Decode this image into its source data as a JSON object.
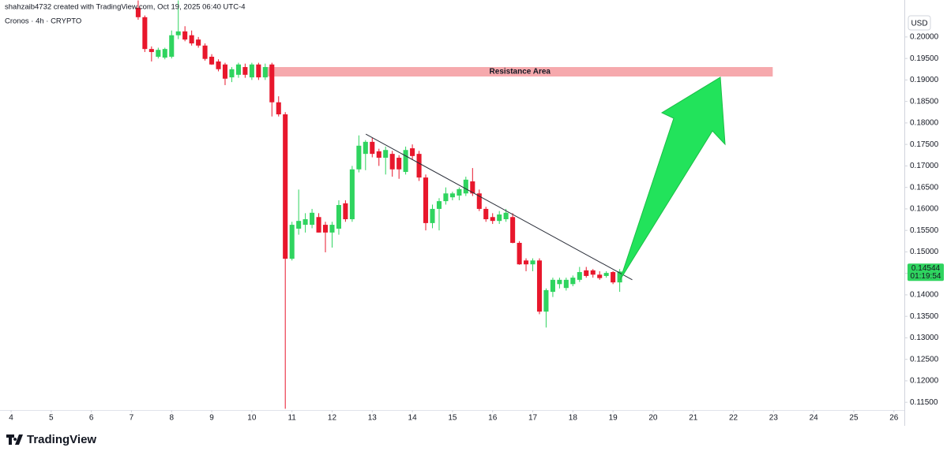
{
  "chart_data": {
    "type": "candlestick",
    "attribution": "shahzaib4732 created with TradingView.com, Oct 19, 2025 06:40 UTC-4",
    "title": "Cronos · 4h · CRYPTO",
    "currency": "USD",
    "logo_text": "TradingView",
    "up_color": "#2fd45f",
    "down_color": "#e8172c",
    "x": [
      7.167,
      7.333,
      7.5,
      7.667,
      7.833,
      8,
      8.167,
      8.333,
      8.5,
      8.667,
      8.833,
      9,
      9.167,
      9.333,
      9.5,
      9.667,
      9.833,
      10,
      10.167,
      10.333,
      10.5,
      10.667,
      10.833,
      11,
      11.167,
      11.333,
      11.5,
      11.667,
      11.833,
      12,
      12.167,
      12.333,
      12.5,
      12.667,
      12.833,
      13,
      13.167,
      13.333,
      13.5,
      13.667,
      13.833,
      14,
      14.167,
      14.333,
      14.5,
      14.667,
      14.833,
      15,
      15.167,
      15.333,
      15.5,
      15.667,
      15.833,
      16,
      16.167,
      16.333,
      16.5,
      16.667,
      16.833,
      17,
      17.167,
      17.333,
      17.5,
      17.667,
      17.833,
      18,
      18.167,
      18.333,
      18.5,
      18.667,
      18.833,
      19,
      19.167
    ],
    "open": [
      0.2068,
      0.2046,
      0.1972,
      0.1954,
      0.1952,
      0.1954,
      0.2004,
      0.2013,
      0.2004,
      0.1994,
      0.198,
      0.1954,
      0.1943,
      0.1936,
      0.1906,
      0.1912,
      0.193,
      0.1906,
      0.1936,
      0.1906,
      0.1936,
      0.1848,
      0.182,
      0.1484,
      0.1554,
      0.1563,
      0.1563,
      0.1581,
      0.1563,
      0.1545,
      0.1554,
      0.1613,
      0.1576,
      0.1692,
      0.1728,
      0.1756,
      0.1734,
      0.1719,
      0.1728,
      0.1719,
      0.1686,
      0.1741,
      0.1728,
      0.1673,
      0.1567,
      0.16,
      0.1618,
      0.1627,
      0.1631,
      0.1636,
      0.1664,
      0.1636,
      0.16,
      0.1581,
      0.1572,
      0.1576,
      0.1581,
      0.1521,
      0.148,
      0.1471,
      0.148,
      0.1361,
      0.1407,
      0.1425,
      0.1416,
      0.1425,
      0.1435,
      0.1457,
      0.1457,
      0.1447,
      0.1444,
      0.1453,
      0.1429
    ],
    "high": [
      0.2085,
      0.205,
      0.1978,
      0.1975,
      0.1975,
      0.2015,
      0.2085,
      0.2025,
      0.2015,
      0.2,
      0.1985,
      0.196,
      0.1948,
      0.194,
      0.193,
      0.194,
      0.1938,
      0.194,
      0.194,
      0.1938,
      0.194,
      0.1862,
      0.1825,
      0.157,
      0.1645,
      0.159,
      0.16,
      0.159,
      0.157,
      0.157,
      0.162,
      0.162,
      0.17,
      0.1771,
      0.176,
      0.1765,
      0.174,
      0.1745,
      0.1735,
      0.1725,
      0.1745,
      0.175,
      0.1735,
      0.168,
      0.161,
      0.1625,
      0.165,
      0.164,
      0.165,
      0.1675,
      0.1695,
      0.1645,
      0.1605,
      0.159,
      0.1595,
      0.16,
      0.159,
      0.1525,
      0.1485,
      0.1485,
      0.1485,
      0.1415,
      0.144,
      0.144,
      0.144,
      0.1445,
      0.1465,
      0.1465,
      0.146,
      0.1455,
      0.1455,
      0.1455,
      0.146
    ],
    "low": [
      0.204,
      0.1965,
      0.1943,
      0.195,
      0.1948,
      0.195,
      0.1995,
      0.199,
      0.198,
      0.1975,
      0.1945,
      0.1935,
      0.192,
      0.1888,
      0.1895,
      0.1905,
      0.1905,
      0.19,
      0.19,
      0.19,
      0.1815,
      0.1815,
      0.1135,
      0.148,
      0.154,
      0.1545,
      0.1555,
      0.1545,
      0.1499,
      0.151,
      0.154,
      0.157,
      0.157,
      0.1685,
      0.169,
      0.172,
      0.17,
      0.168,
      0.1675,
      0.167,
      0.168,
      0.1715,
      0.1665,
      0.155,
      0.1555,
      0.155,
      0.161,
      0.162,
      0.162,
      0.163,
      0.163,
      0.1595,
      0.157,
      0.1565,
      0.1565,
      0.157,
      0.152,
      0.147,
      0.1455,
      0.1455,
      0.1355,
      0.1324,
      0.1395,
      0.1415,
      0.141,
      0.142,
      0.143,
      0.144,
      0.144,
      0.1435,
      0.144,
      0.1425,
      0.1407
    ],
    "close": [
      0.2046,
      0.1972,
      0.1965,
      0.197,
      0.1972,
      0.2004,
      0.2013,
      0.1994,
      0.1985,
      0.198,
      0.1949,
      0.1936,
      0.1925,
      0.1903,
      0.1925,
      0.1936,
      0.1912,
      0.1936,
      0.1906,
      0.193,
      0.1848,
      0.182,
      0.1484,
      0.1563,
      0.1572,
      0.1576,
      0.1591,
      0.1545,
      0.1545,
      0.1563,
      0.1609,
      0.1576,
      0.1692,
      0.1747,
      0.1756,
      0.1728,
      0.1719,
      0.1737,
      0.1692,
      0.1692,
      0.1737,
      0.1723,
      0.1673,
      0.1567,
      0.16,
      0.1618,
      0.1636,
      0.1636,
      0.1646,
      0.1668,
      0.1636,
      0.16,
      0.1576,
      0.1572,
      0.1587,
      0.1591,
      0.1521,
      0.1471,
      0.1471,
      0.148,
      0.1361,
      0.1411,
      0.1435,
      0.1435,
      0.1435,
      0.144,
      0.1453,
      0.1444,
      0.1447,
      0.1439,
      0.1451,
      0.1429,
      0.14544
    ],
    "last_price": {
      "value": 0.14544,
      "label": "0.14544"
    },
    "countdown": "01:19:54",
    "xlim": [
      3.724,
      26.26
    ],
    "xticks": [
      4,
      5,
      6,
      7,
      8,
      9,
      10,
      11,
      12,
      13,
      14,
      15,
      16,
      17,
      18,
      19,
      20,
      21,
      22,
      23,
      24,
      25,
      26
    ],
    "ylim": [
      0.1132,
      0.2086
    ],
    "yticks": [
      {
        "value": 0.115,
        "label": "0.11500"
      },
      {
        "value": 0.12,
        "label": "0.12000"
      },
      {
        "value": 0.125,
        "label": "0.12500"
      },
      {
        "value": 0.13,
        "label": "0.13000"
      },
      {
        "value": 0.135,
        "label": "0.13500"
      },
      {
        "value": 0.14,
        "label": "0.14000"
      },
      {
        "value": 0.145,
        "label": "0.14500"
      },
      {
        "value": 0.15,
        "label": "0.15000"
      },
      {
        "value": 0.155,
        "label": "0.15500"
      },
      {
        "value": 0.16,
        "label": "0.16000"
      },
      {
        "value": 0.165,
        "label": "0.16500"
      },
      {
        "value": 0.17,
        "label": "0.17000"
      },
      {
        "value": 0.175,
        "label": "0.17500"
      },
      {
        "value": 0.18,
        "label": "0.18000"
      },
      {
        "value": 0.185,
        "label": "0.18500"
      },
      {
        "value": 0.19,
        "label": "0.19000"
      },
      {
        "value": 0.195,
        "label": "0.19500"
      },
      {
        "value": 0.2,
        "label": "0.20000"
      }
    ],
    "resistance_area": {
      "label": "Resistance Area",
      "x": [
        10.38,
        22.98
      ],
      "y": [
        0.1908,
        0.193
      ],
      "color": "#f6a9ad"
    },
    "trendline": {
      "x": [
        12.84,
        19.48
      ],
      "y": [
        0.1774,
        0.1435
      ]
    }
  }
}
